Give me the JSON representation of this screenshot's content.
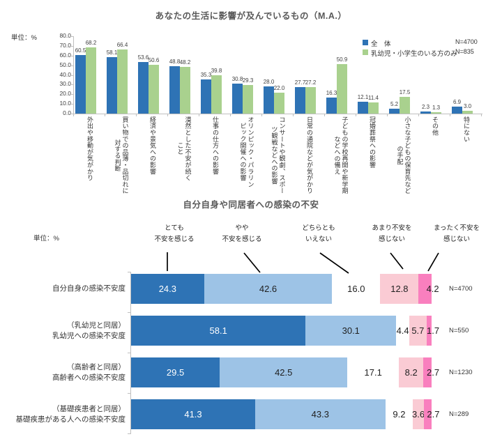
{
  "chart_data": [
    {
      "type": "bar",
      "title": "あなたの生活に影響が及んでいるもの（M.A.）",
      "unit": "単位：%",
      "ylim": [
        0,
        80
      ],
      "ytick_step": 10,
      "yticks": [
        "0.0",
        "10.0",
        "20.0",
        "30.0",
        "40.0",
        "50.0",
        "60.0",
        "70.0",
        "80.0"
      ],
      "grid": false,
      "legend_position": "top-right",
      "categories": [
        [
          "外出や移動が気がかり"
        ],
        [
          "買い物での品薄・品切れに",
          "対する判断"
        ],
        [
          "経済や景気への影響"
        ],
        [
          "漠然とした不安が続く",
          "こと"
        ],
        [
          "仕事の仕方への影響"
        ],
        [
          "オリンピック・パラリン",
          "ピック開催への影響"
        ],
        [
          "コンサートや観劇、スポー",
          "ツ観戦などへの影響"
        ],
        [
          "日常の通院などが気がかり"
        ],
        [
          "子どもの学校再開や新学期",
          "などへの備え"
        ],
        [
          "冠婚葬祭への影響"
        ],
        [
          "小さな子どもの保育先など",
          "の手配"
        ],
        [
          "その他"
        ],
        [
          "特にない"
        ]
      ],
      "series": [
        {
          "name": "全　体",
          "n_label": "N=4700",
          "color": "#2E73B5",
          "values": [
            60.5,
            58.1,
            53.6,
            48.8,
            35.3,
            30.8,
            28.0,
            27.7,
            16.3,
            12.1,
            5.2,
            2.3,
            6.9
          ]
        },
        {
          "name": "乳幼児・小学生のいる方のみ",
          "n_label": "N=835",
          "color": "#A9D18E",
          "values": [
            68.2,
            66.4,
            50.6,
            48.2,
            39.8,
            29.3,
            22.0,
            27.2,
            50.9,
            11.4,
            17.5,
            1.3,
            3.0
          ]
        }
      ]
    },
    {
      "type": "stacked-bar-horizontal",
      "title": "自分自身や同居者への感染の不安",
      "unit": "単位：%",
      "xlim": [
        0,
        100
      ],
      "segments": [
        {
          "label": [
            "とても",
            "不安を感じる"
          ],
          "color": "#2E73B5",
          "label_color": "#ffffff"
        },
        {
          "label": [
            "やや",
            "不安を感じる"
          ],
          "color": "#9DC3E6",
          "label_color": "#1f1f1f"
        },
        {
          "label": [
            "どちらとも",
            "いえない"
          ],
          "color": "#FFFFFF",
          "label_color": "#1f1f1f"
        },
        {
          "label": [
            "あまり不安を",
            "感じない"
          ],
          "color": "#FACBD4",
          "label_color": "#1f1f1f"
        },
        {
          "label": [
            "まったく不安を",
            "感じない"
          ],
          "color": "#F97FBE",
          "label_color": "#1f1f1f"
        }
      ],
      "rows": [
        {
          "label": [
            "自分自身の感染不安度"
          ],
          "n_label": "N=4700",
          "values": [
            24.3,
            42.6,
            16.0,
            12.8,
            4.2
          ]
        },
        {
          "label": [
            "（乳幼児と同居）",
            "乳幼児への感染不安度"
          ],
          "n_label": "N=550",
          "values": [
            58.1,
            30.1,
            4.4,
            5.7,
            1.7
          ]
        },
        {
          "label": [
            "（高齢者と同居）",
            "高齢者への感染不安度"
          ],
          "n_label": "N=1230",
          "values": [
            29.5,
            42.5,
            17.1,
            8.2,
            2.7
          ]
        },
        {
          "label": [
            "（基礎疾患者と同居）",
            "基礎疾患がある人への感染不安度"
          ],
          "n_label": "N=289",
          "values": [
            41.3,
            43.3,
            9.2,
            3.6,
            2.7
          ]
        }
      ]
    }
  ]
}
